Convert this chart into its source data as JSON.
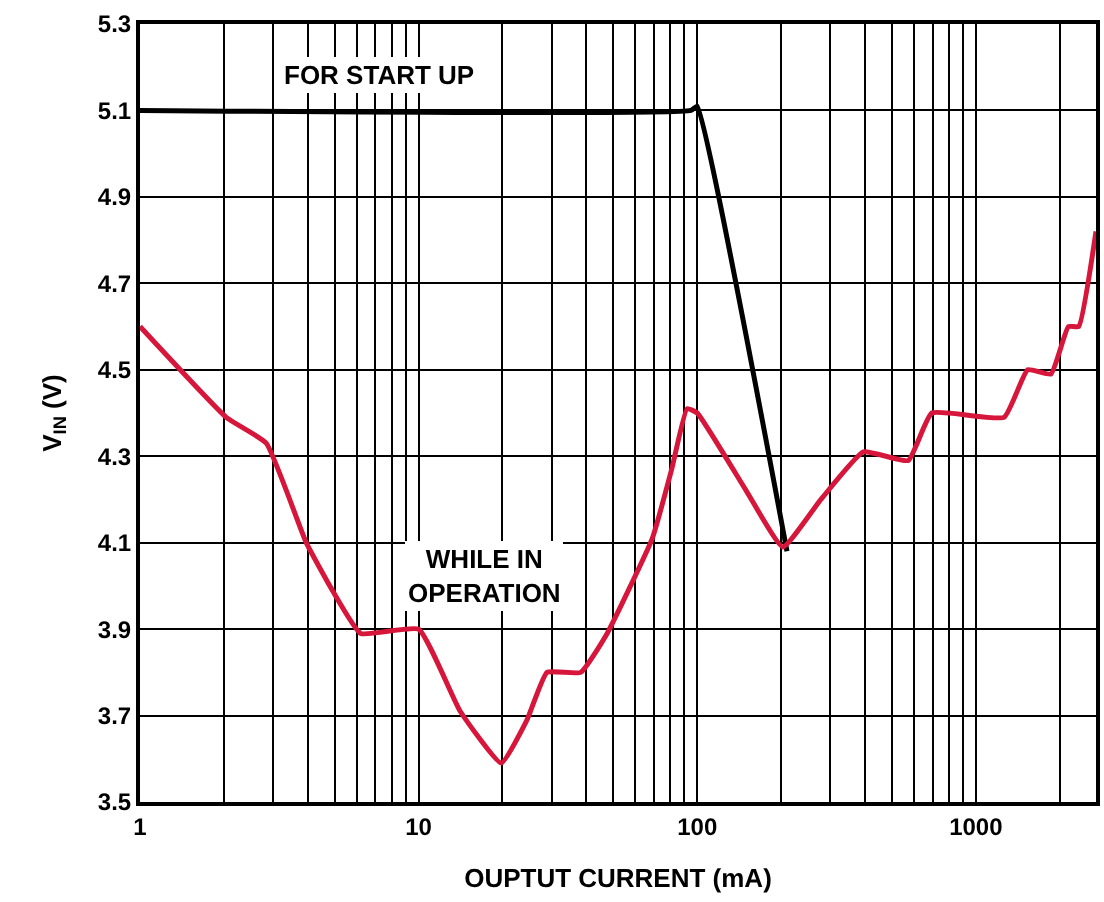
{
  "chart_data": {
    "type": "line",
    "xlabel": "OUPTUT CURRENT (mA)",
    "ylabel": "V$_{IN}$ (V)",
    "log": "x",
    "xlim": [
      1,
      2700
    ],
    "ylim": [
      3.5,
      5.3
    ],
    "xticks": [
      1,
      {
        "value": 2,
        "label": null
      },
      {
        "value": 3,
        "label": null
      },
      {
        "value": 4,
        "label": null
      },
      {
        "value": 5,
        "label": null
      },
      {
        "value": 6,
        "label": null
      },
      {
        "value": 7,
        "label": null
      },
      {
        "value": 8,
        "label": null
      },
      {
        "value": 9,
        "label": null
      },
      10,
      {
        "value": 20,
        "label": null
      },
      {
        "value": 30,
        "label": null
      },
      {
        "value": 40,
        "label": null
      },
      {
        "value": 50,
        "label": null
      },
      {
        "value": 60,
        "label": null
      },
      {
        "value": 70,
        "label": null
      },
      {
        "value": 80,
        "label": null
      },
      {
        "value": 90,
        "label": null
      },
      100,
      {
        "value": 200,
        "label": null
      },
      {
        "value": 300,
        "label": null
      },
      {
        "value": 400,
        "label": null
      },
      {
        "value": 500,
        "label": null
      },
      {
        "value": 600,
        "label": null
      },
      {
        "value": 700,
        "label": null
      },
      {
        "value": 800,
        "label": null
      },
      {
        "value": 900,
        "label": null
      },
      1000,
      {
        "value": 2000,
        "label": null
      }
    ],
    "yticks": [
      3.5,
      3.7,
      3.9,
      4.1,
      4.3,
      4.5,
      4.7,
      4.9,
      5.1,
      5.3
    ],
    "grid": true,
    "line_style": "solid",
    "marker": "none",
    "series": [
      {
        "color": "#000000",
        "x": [
          1,
          95,
          100,
          210
        ],
        "values": [
          5.1,
          5.1,
          5.11,
          4.08
        ]
      },
      {
        "color": "#d6163a",
        "x": [
          1,
          2.04,
          2.84,
          3.95,
          4.9,
          6.2,
          10,
          14.1,
          19.8,
          24.5,
          28.9,
          38.2,
          47.5,
          69,
          81,
          92,
          100,
          150,
          203,
          278,
          395,
          572,
          695,
          1263,
          1535,
          1860,
          2150,
          2340,
          2700
        ],
        "values": [
          4.6,
          4.39,
          4.33,
          4.1,
          3.99,
          3.89,
          3.9,
          3.71,
          3.59,
          3.69,
          3.8,
          3.8,
          3.89,
          4.11,
          4.27,
          4.41,
          4.4,
          4.22,
          4.09,
          4.2,
          4.31,
          4.29,
          4.4,
          4.39,
          4.5,
          4.49,
          4.6,
          4.6,
          4.82
        ]
      }
    ],
    "annotations": [
      "FOR START UP",
      "WHILE IN\nOPERATION"
    ]
  }
}
